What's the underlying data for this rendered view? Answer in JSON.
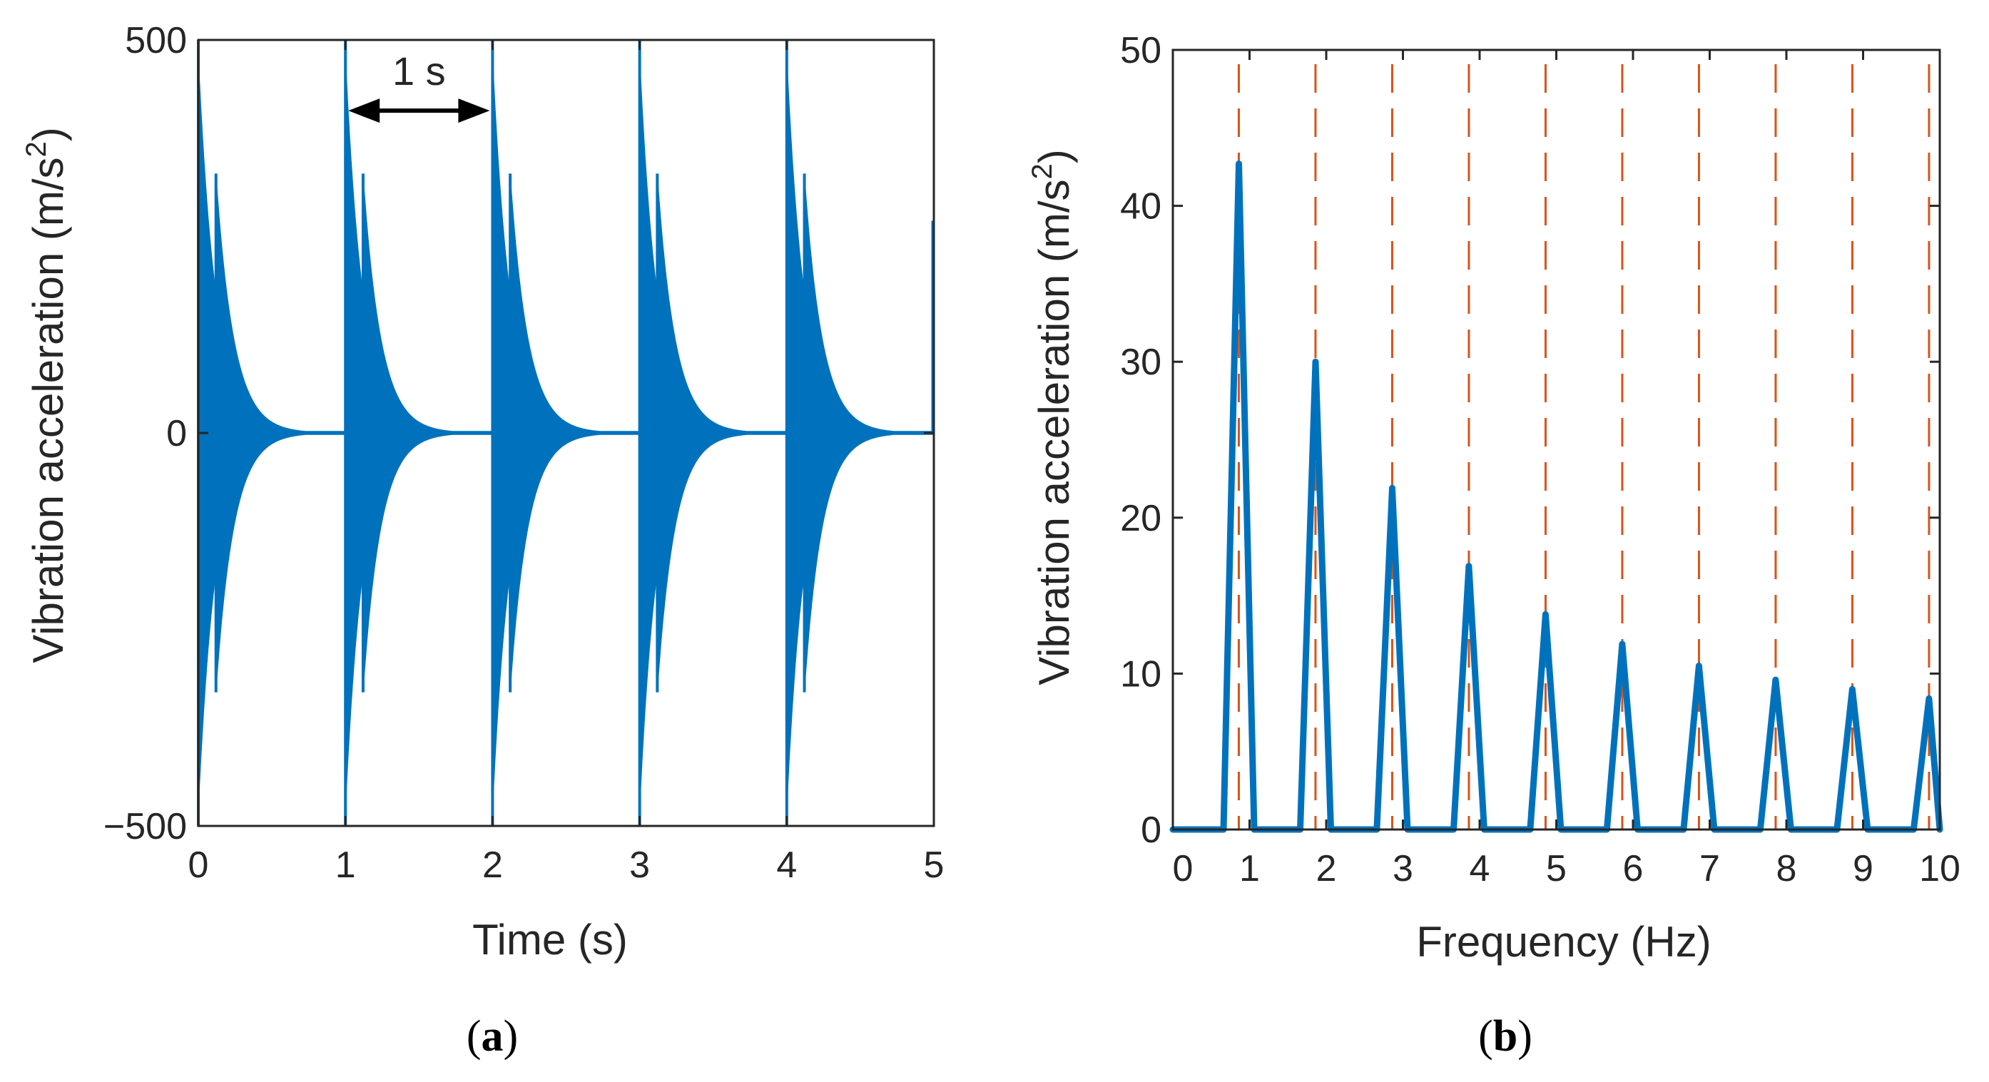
{
  "panels": [
    {
      "open": "(",
      "letter": "a",
      "close": ")"
    },
    {
      "open": "(",
      "letter": "b",
      "close": ")"
    }
  ],
  "chart_data": [
    {
      "type": "line",
      "title": "",
      "xlabel": "Time (s)",
      "ylabel": "Vibration acceleration (m/s",
      "ylabel_sup": "2",
      "ylabel_end": ")",
      "xlim": [
        0,
        5
      ],
      "ylim": [
        -500,
        500
      ],
      "xticks": [
        0,
        1,
        2,
        3,
        4,
        5
      ],
      "xtick_labels": [
        "0",
        "1",
        "2",
        "3",
        "4",
        "5"
      ],
      "yticks": [
        -500,
        0,
        500
      ],
      "ytick_labels": [
        "−500",
        "0",
        "500"
      ],
      "color": "#0072BD",
      "impacts": {
        "times": [
          0,
          1,
          2,
          3,
          4
        ],
        "peak_amplitude": 480,
        "secondary_offset": 0.12,
        "secondary_amplitude": 330,
        "decay_time_constant": 0.12,
        "settled_value": 0
      },
      "annotation": {
        "text": "1 s",
        "from_x": 1,
        "to_x": 2,
        "y": 410
      }
    },
    {
      "type": "line",
      "title": "",
      "xlabel": "Frequency (Hz)",
      "ylabel": "Vibration acceleration (m/s",
      "ylabel_sup": "2",
      "ylabel_end": ")",
      "xlim": [
        0,
        10
      ],
      "ylim": [
        0,
        50
      ],
      "xticks": [
        0,
        1,
        2,
        3,
        4,
        5,
        6,
        7,
        8,
        9,
        10
      ],
      "xtick_labels": [
        "0",
        "1",
        "2",
        "3",
        "4",
        "5",
        "6",
        "7",
        "8",
        "9",
        "10"
      ],
      "yticks": [
        0,
        10,
        20,
        30,
        40,
        50
      ],
      "ytick_labels": [
        "0",
        "10",
        "20",
        "30",
        "40",
        "50"
      ],
      "color": "#0072BD",
      "reference_lines": {
        "x": [
          0.86,
          1.86,
          2.86,
          3.86,
          4.86,
          5.86,
          6.86,
          7.86,
          8.86,
          9.86
        ],
        "color": "#D95319",
        "style": "dashed"
      },
      "peaks": [
        {
          "x": 0.86,
          "y": 42.7
        },
        {
          "x": 1.86,
          "y": 30.0
        },
        {
          "x": 2.86,
          "y": 21.9
        },
        {
          "x": 3.86,
          "y": 16.9
        },
        {
          "x": 4.86,
          "y": 13.8
        },
        {
          "x": 5.86,
          "y": 11.9
        },
        {
          "x": 6.86,
          "y": 10.5
        },
        {
          "x": 7.86,
          "y": 9.6
        },
        {
          "x": 8.86,
          "y": 9.0
        },
        {
          "x": 9.86,
          "y": 8.4
        }
      ],
      "peak_half_width": 0.2
    }
  ]
}
